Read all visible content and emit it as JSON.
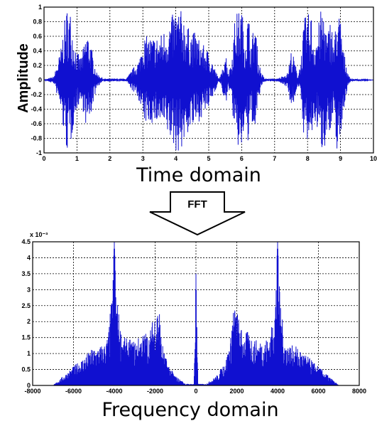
{
  "chart_data": [
    {
      "type": "line",
      "ylabel": "Amplitude",
      "xlim": [
        0,
        10
      ],
      "ylim": [
        -1,
        1
      ],
      "xticks": [
        "0",
        "1",
        "2",
        "3",
        "4",
        "5",
        "6",
        "7",
        "8",
        "9",
        "10"
      ],
      "yticks": [
        "1",
        "0.8",
        "0.6",
        "0.4",
        "0.2",
        "0",
        "-0.2",
        "-0.4",
        "-0.6",
        "-0.8",
        "-1"
      ],
      "grid": true,
      "color": "#1010d0",
      "envelope": {
        "x": [
          0,
          0.3,
          0.5,
          0.6,
          0.7,
          0.8,
          0.9,
          1.0,
          1.1,
          1.2,
          1.3,
          1.4,
          1.5,
          1.6,
          1.8,
          2.5,
          2.9,
          3.0,
          3.2,
          3.5,
          3.8,
          4.0,
          4.2,
          4.4,
          4.6,
          4.8,
          5.0,
          5.3,
          5.4,
          5.5,
          5.6,
          5.7,
          5.8,
          5.9,
          6.0,
          6.1,
          6.2,
          6.3,
          6.4,
          6.5,
          6.6,
          6.7,
          6.8,
          6.9,
          7.0,
          7.1,
          7.4,
          7.5,
          7.6,
          7.7,
          7.8,
          7.9,
          8.0,
          8.1,
          8.2,
          8.3,
          8.4,
          8.5,
          8.6,
          8.7,
          8.8,
          8.9,
          9.0,
          9.1,
          9.2,
          9.3,
          10
        ],
        "amplitude": [
          0,
          0.05,
          0.4,
          0.75,
          1.0,
          0.95,
          0.6,
          0.4,
          0.3,
          0.45,
          0.7,
          0.55,
          0.3,
          0.1,
          0.02,
          0.02,
          0.3,
          0.6,
          0.6,
          0.6,
          0.8,
          1.0,
          0.95,
          0.7,
          0.65,
          0.5,
          0.4,
          0.02,
          0.1,
          0.45,
          0.1,
          0.3,
          0.9,
          0.95,
          1.0,
          0.6,
          0.95,
          0.5,
          0.9,
          0.3,
          0.1,
          0.02,
          0.02,
          0.02,
          0.02,
          0.02,
          0.1,
          0.4,
          0.3,
          0.05,
          0.3,
          0.85,
          0.9,
          0.95,
          0.55,
          0.7,
          0.95,
          1.0,
          0.6,
          0.9,
          0.5,
          1.0,
          0.85,
          0.4,
          0.15,
          0.02,
          0
        ]
      }
    },
    {
      "type": "line",
      "title": "x 10⁻³",
      "xlim": [
        -8000,
        8000
      ],
      "ylim": [
        0,
        4.5
      ],
      "xticks": [
        "-8000",
        "-6000",
        "-4000",
        "-2000",
        "0",
        "2000",
        "4000",
        "6000",
        "8000"
      ],
      "yticks": [
        "4.5",
        "4",
        "3.5",
        "3",
        "2.5",
        "2",
        "1.5",
        "1",
        "0.5",
        "0"
      ],
      "grid": true,
      "color": "#1010d0",
      "envelope": {
        "x": [
          -8000,
          -7000,
          -6500,
          -6000,
          -5500,
          -5000,
          -4500,
          -4300,
          -4100,
          -4000,
          -3900,
          -3700,
          -3500,
          -3000,
          -2500,
          -2300,
          -2000,
          -1800,
          -1700,
          -1500,
          -1200,
          -1000,
          -500,
          -100,
          0,
          100,
          500,
          1000,
          1200,
          1500,
          1700,
          1800,
          2000,
          2300,
          2500,
          3000,
          3500,
          3700,
          3900,
          4000,
          4100,
          4300,
          4500,
          5000,
          5500,
          6000,
          6500,
          7000,
          8000
        ],
        "magnitude": [
          0,
          0,
          0.3,
          0.6,
          0.9,
          1.2,
          1.3,
          1.6,
          3.0,
          4.5,
          3.0,
          1.8,
          1.5,
          1.4,
          1.7,
          1.6,
          2.4,
          2.6,
          1.5,
          0.9,
          0.5,
          0.3,
          0.05,
          0.05,
          3.5,
          0.05,
          0.05,
          0.3,
          0.5,
          0.9,
          1.5,
          2.6,
          2.4,
          1.6,
          1.7,
          1.4,
          1.5,
          1.8,
          3.0,
          4.5,
          3.0,
          1.6,
          1.3,
          1.2,
          0.9,
          0.6,
          0.3,
          0,
          0
        ]
      }
    }
  ],
  "captions": {
    "time": "Time domain",
    "frequency": "Frequency domain",
    "arrow": "FFT"
  }
}
